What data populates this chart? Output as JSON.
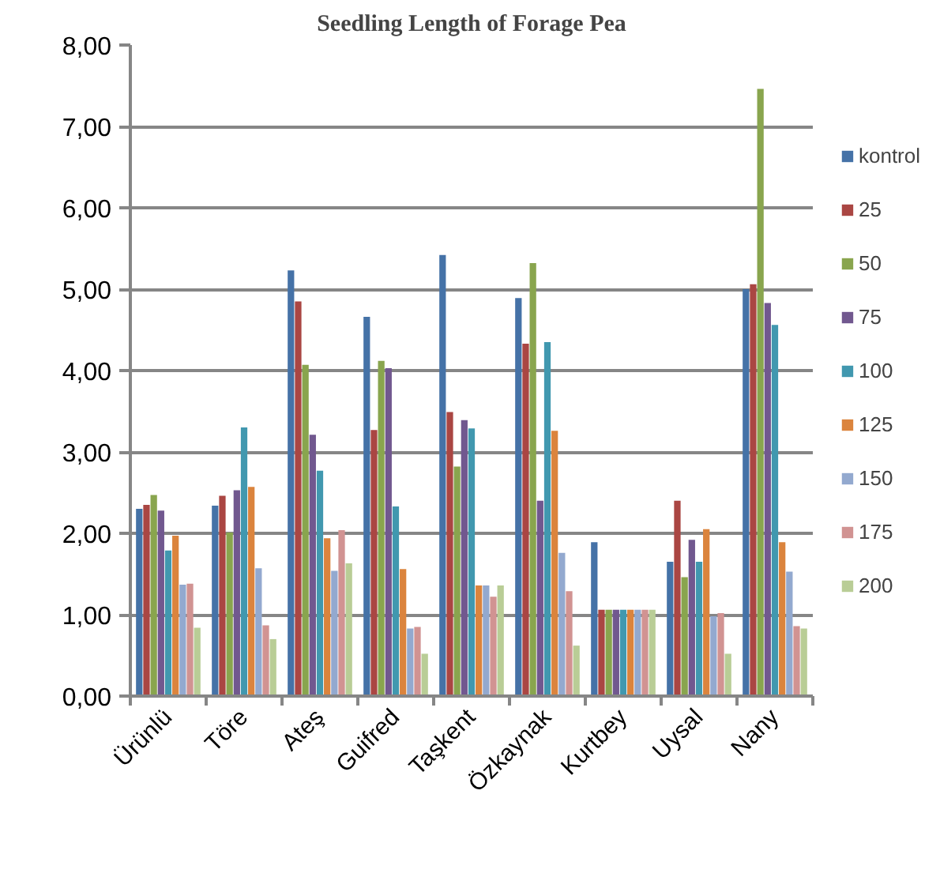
{
  "chart_data": {
    "type": "bar",
    "title": "Seedling Length of Forage Pea",
    "categories": [
      "Ürünlü",
      "Töre",
      "Ateş",
      "Guifred",
      "Taşkent",
      "Özkaynak",
      "Kurtbey",
      "Uysal",
      "Nany"
    ],
    "series": [
      {
        "name": "kontrol",
        "color": "#4572a7",
        "values": [
          2.3,
          2.34,
          5.23,
          4.66,
          5.42,
          4.89,
          1.89,
          1.65,
          5.0
        ]
      },
      {
        "name": "25",
        "color": "#aa4643",
        "values": [
          2.35,
          2.46,
          4.85,
          3.27,
          3.49,
          4.33,
          1.06,
          2.4,
          5.06
        ]
      },
      {
        "name": "50",
        "color": "#89a54e",
        "values": [
          2.47,
          2.01,
          4.07,
          4.12,
          2.82,
          5.32,
          1.06,
          1.46,
          7.46
        ]
      },
      {
        "name": "75",
        "color": "#71588f",
        "values": [
          2.28,
          2.53,
          3.21,
          4.03,
          3.39,
          2.4,
          1.06,
          1.92,
          4.83
        ]
      },
      {
        "name": "100",
        "color": "#4198af",
        "values": [
          1.79,
          3.3,
          2.77,
          2.33,
          3.29,
          4.35,
          1.06,
          1.65,
          4.56
        ]
      },
      {
        "name": "125",
        "color": "#db843d",
        "values": [
          1.97,
          2.57,
          1.94,
          1.56,
          1.36,
          3.26,
          1.06,
          2.05,
          1.89
        ]
      },
      {
        "name": "150",
        "color": "#93a9cf",
        "values": [
          1.37,
          1.57,
          1.54,
          0.83,
          1.36,
          1.76,
          1.06,
          0.98,
          1.53
        ]
      },
      {
        "name": "175",
        "color": "#d19392",
        "values": [
          1.38,
          0.87,
          2.04,
          0.85,
          1.22,
          1.29,
          1.06,
          1.02,
          0.86
        ]
      },
      {
        "name": "200",
        "color": "#b9cd96",
        "values": [
          0.84,
          0.7,
          1.63,
          0.52,
          1.36,
          0.62,
          1.06,
          0.52,
          0.83
        ]
      }
    ],
    "ylim": [
      0,
      8
    ],
    "yticks": [
      {
        "value": 0,
        "label": "0,00"
      },
      {
        "value": 1,
        "label": "1,00"
      },
      {
        "value": 2,
        "label": "2,00"
      },
      {
        "value": 3,
        "label": "3,00"
      },
      {
        "value": 4,
        "label": "4,00"
      },
      {
        "value": 5,
        "label": "5,00"
      },
      {
        "value": 6,
        "label": "6,00"
      },
      {
        "value": 7,
        "label": "7,00"
      },
      {
        "value": 8,
        "label": "8,00"
      }
    ],
    "grid": "y",
    "legend": "right"
  }
}
